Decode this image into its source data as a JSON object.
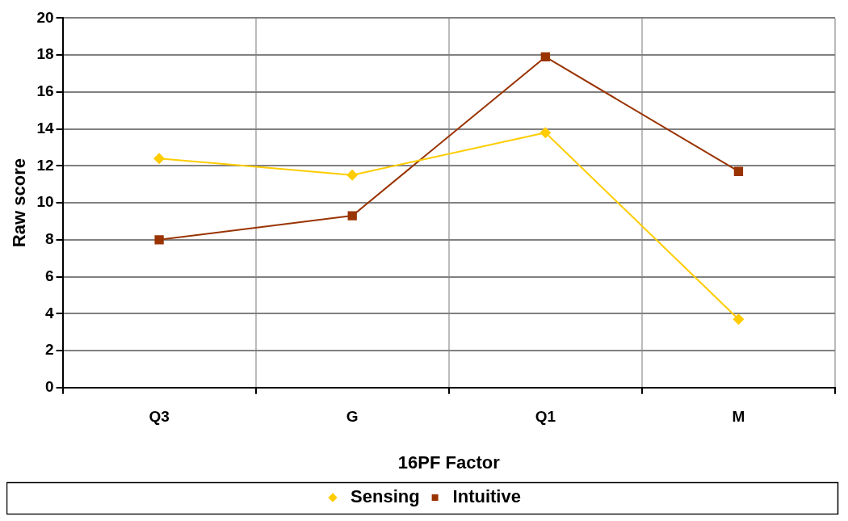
{
  "chart_data": {
    "type": "line",
    "xlabel": "16PF Factor",
    "ylabel": "Raw score",
    "categories": [
      "Q3",
      "G",
      "Q1",
      "M"
    ],
    "series": [
      {
        "name": "Sensing",
        "color": "#ffcc00",
        "values": [
          12.4,
          11.5,
          13.8,
          3.7
        ],
        "marker": "diamond"
      },
      {
        "name": "Intuitive",
        "color": "#993300",
        "values": [
          8.0,
          9.3,
          17.9,
          11.7
        ],
        "marker": "square"
      }
    ],
    "ylim": [
      0,
      20
    ],
    "yticks": [
      0,
      2,
      4,
      6,
      8,
      10,
      12,
      14,
      16,
      18,
      20
    ],
    "grid": true,
    "legend": "bottom",
    "line_style": "solid"
  }
}
